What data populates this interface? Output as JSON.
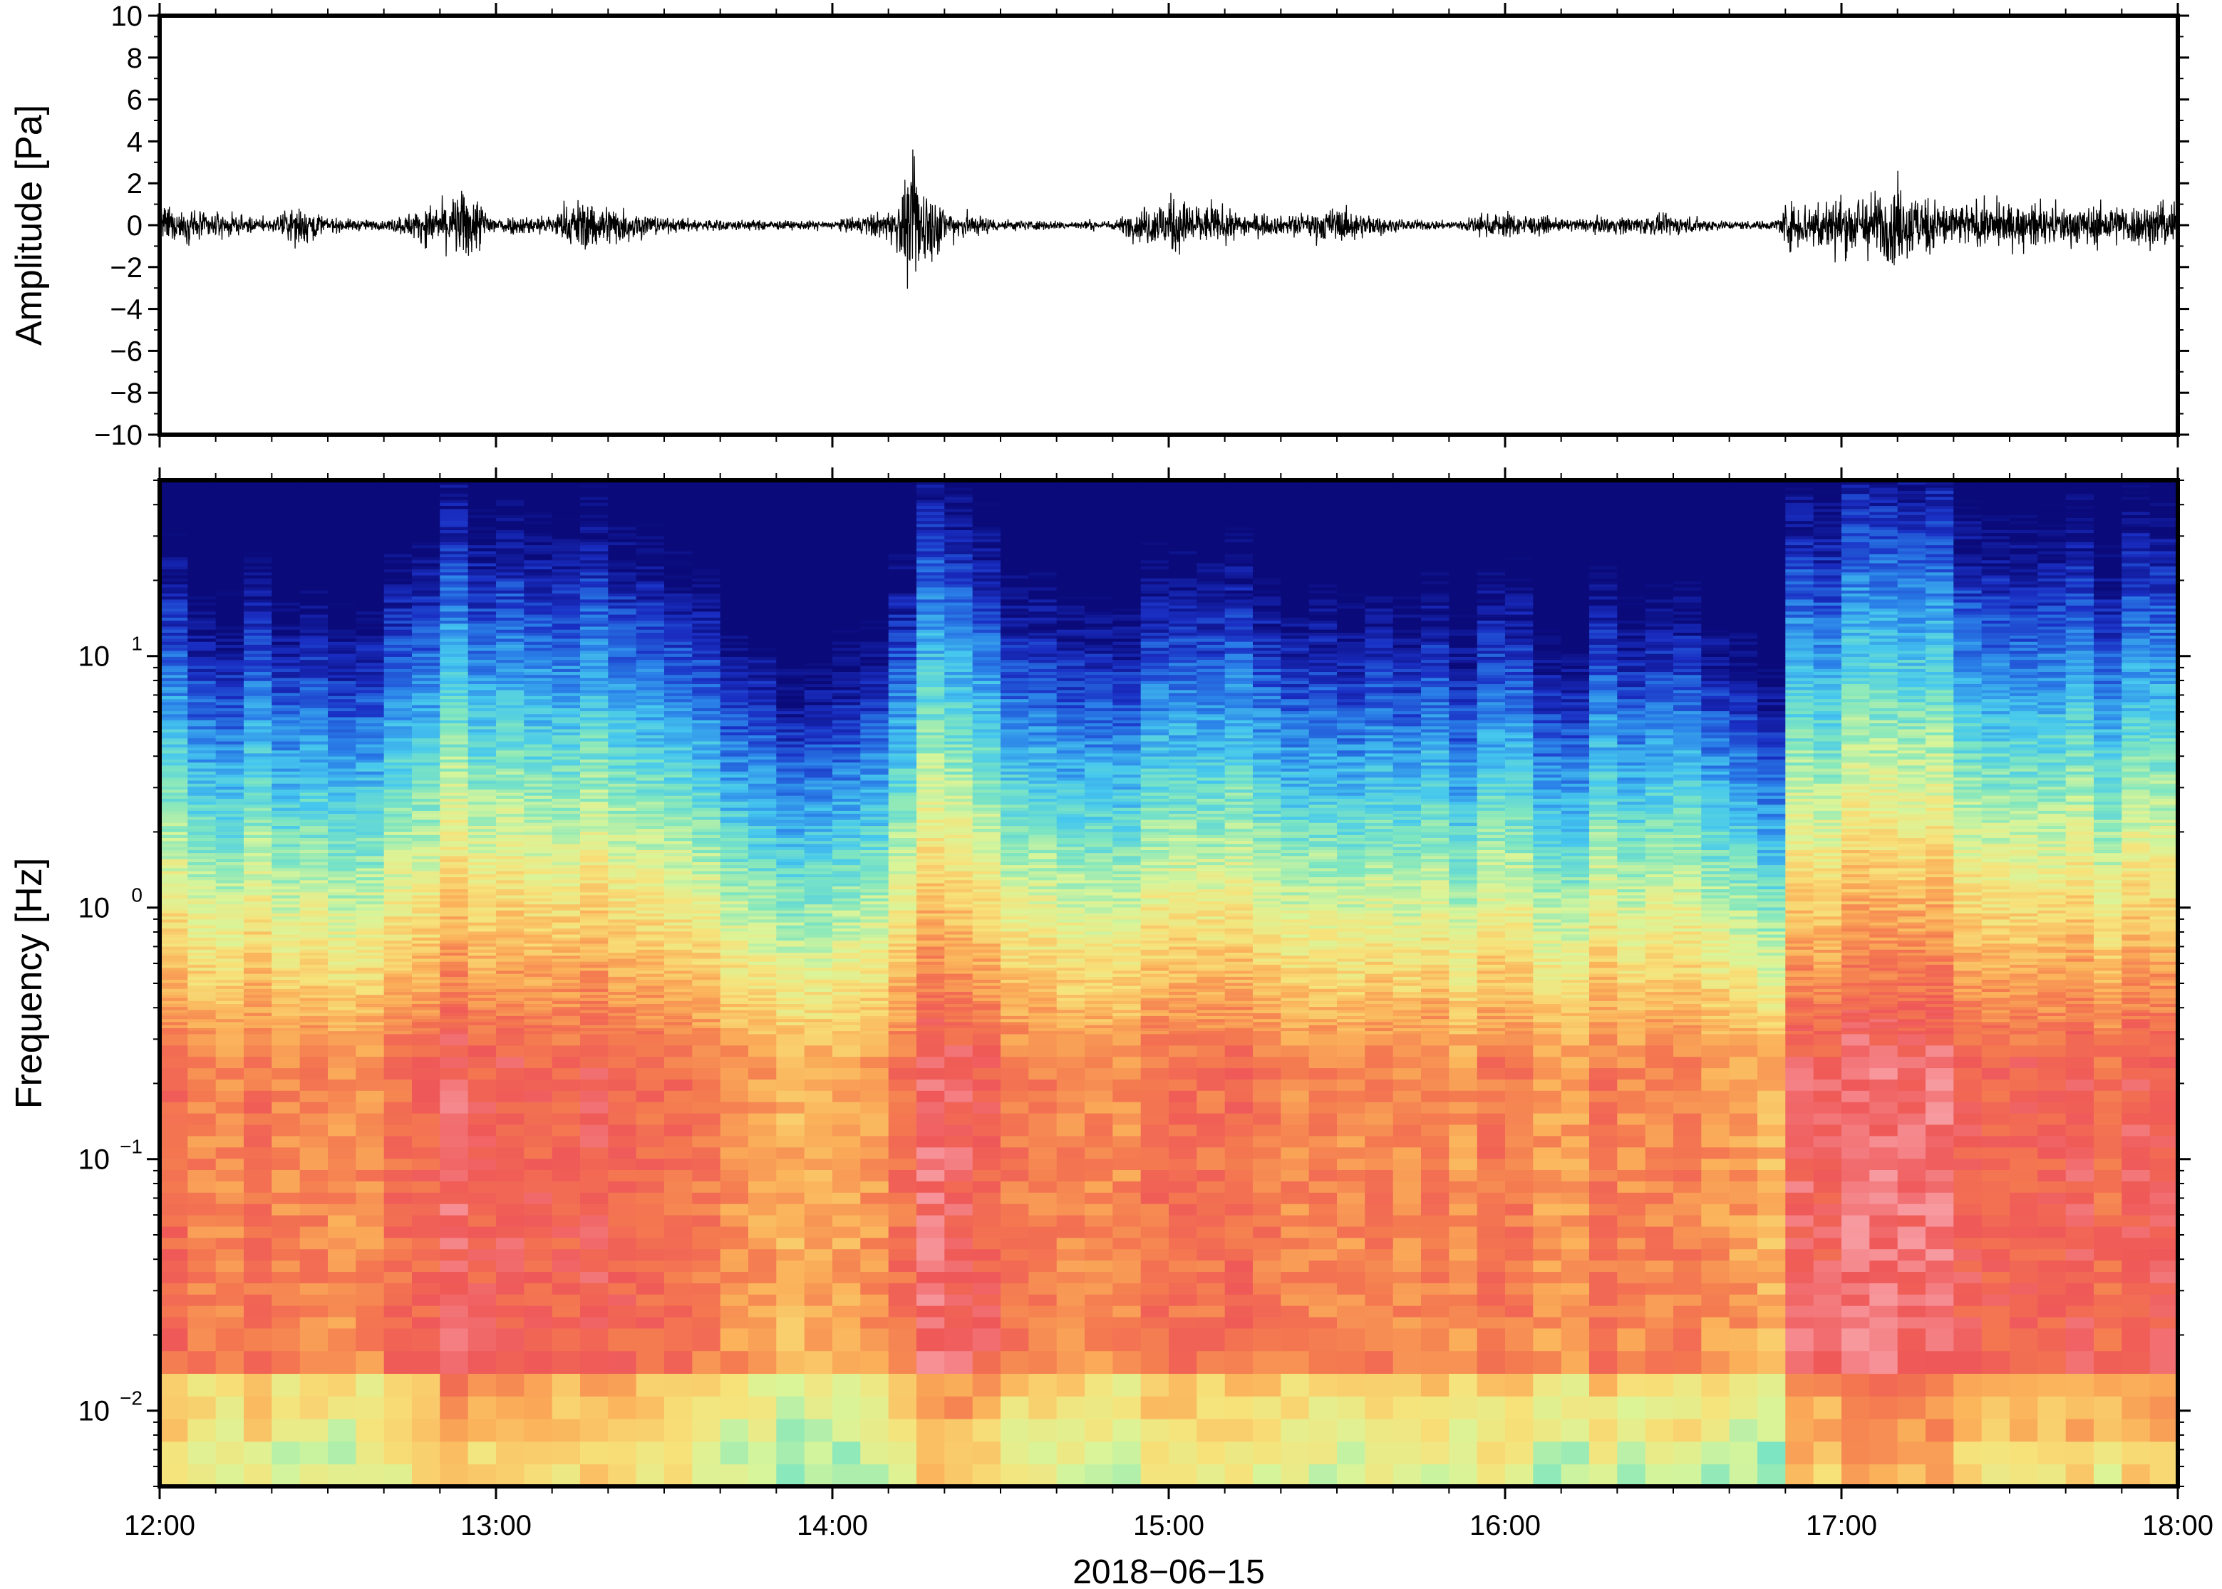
{
  "chart_data": [
    {
      "type": "line",
      "title": "",
      "ylabel": "Amplitude [Pa]",
      "ylim": [
        -10,
        10
      ],
      "yticks": [
        -10,
        -8,
        -6,
        -4,
        -2,
        0,
        2,
        4,
        6,
        8,
        10
      ],
      "ytick_labels": [
        "−10",
        "−8",
        "−6",
        "−4",
        "−2",
        "0",
        "2",
        "4",
        "6",
        "8",
        "10"
      ],
      "xlim": [
        "2018-06-15 12:00",
        "2018-06-15 18:00"
      ],
      "series": [
        {
          "values_description_note": "",
          "envelope": {
            "time": [
              "12:00",
              "12:10",
              "12:20",
              "12:25",
              "12:30",
              "12:40",
              "12:50",
              "12:55",
              "13:00",
              "13:10",
              "13:15",
              "13:20",
              "13:30",
              "13:40",
              "13:50",
              "14:00",
              "14:10",
              "14:15",
              "14:20",
              "14:30",
              "14:40",
              "14:50",
              "15:00",
              "15:10",
              "15:20",
              "15:30",
              "15:40",
              "15:50",
              "16:00",
              "16:10",
              "16:20",
              "16:30",
              "16:40",
              "16:48",
              "16:50",
              "17:00",
              "17:10",
              "17:20",
              "17:30",
              "17:40",
              "17:50",
              "18:00"
            ],
            "peak_pa": [
              1.3,
              0.8,
              0.4,
              1.5,
              0.5,
              0.3,
              1.5,
              2.5,
              0.6,
              0.7,
              1.8,
              1.5,
              0.5,
              0.4,
              0.3,
              0.3,
              1.0,
              4.0,
              1.2,
              0.4,
              0.3,
              0.3,
              2.0,
              1.0,
              0.6,
              1.2,
              0.4,
              0.3,
              0.9,
              0.4,
              0.6,
              0.7,
              0.3,
              0.3,
              1.5,
              2.0,
              2.6,
              1.5,
              1.4,
              1.3,
              1.4,
              1.6
            ]
          }
        }
      ]
    },
    {
      "type": "heatmap",
      "title": "",
      "xlabel": "2018−06−15",
      "ylabel": "Frequency [Hz]",
      "y_scale": "log",
      "ylim": [
        0.005,
        50
      ],
      "xlim": [
        "12:00",
        "18:00"
      ],
      "xticks": [
        "12:00",
        "13:00",
        "14:00",
        "15:00",
        "16:00",
        "17:00",
        "18:00"
      ],
      "ytick_labels": [
        {
          "value": 0.01,
          "base": "10",
          "exp": "−2"
        },
        {
          "value": 0.1,
          "base": "10",
          "exp": "−1"
        },
        {
          "value": 1,
          "base": "10",
          "exp": "0"
        },
        {
          "value": 10,
          "base": "10",
          "exp": "1"
        }
      ],
      "colormap": [
        "#0a0a7a",
        "#1a2fc4",
        "#2a7fe8",
        "#46c8ee",
        "#7fe6c0",
        "#d8f59a",
        "#f7e27a",
        "#fbb25a",
        "#f47a50",
        "#ef5858",
        "#f79aa0"
      ],
      "activity": {
        "time": [
          "12:00",
          "12:10",
          "12:20",
          "12:30",
          "12:40",
          "12:50",
          "13:00",
          "13:10",
          "13:20",
          "13:30",
          "13:40",
          "13:50",
          "14:00",
          "14:10",
          "14:20",
          "14:30",
          "14:40",
          "14:50",
          "15:00",
          "15:10",
          "15:20",
          "15:30",
          "15:40",
          "15:50",
          "16:00",
          "16:10",
          "16:20",
          "16:30",
          "16:40",
          "16:48",
          "16:50",
          "17:00",
          "17:10",
          "17:20",
          "17:30",
          "17:40",
          "17:50",
          "18:00"
        ],
        "level": [
          0.6,
          0.5,
          0.6,
          0.4,
          0.5,
          0.8,
          0.7,
          0.6,
          0.8,
          0.7,
          0.5,
          0.3,
          0.3,
          0.5,
          0.9,
          0.6,
          0.4,
          0.3,
          0.6,
          0.7,
          0.5,
          0.5,
          0.4,
          0.4,
          0.5,
          0.4,
          0.5,
          0.4,
          0.3,
          0.3,
          0.8,
          0.9,
          0.95,
          0.8,
          0.8,
          0.75,
          0.7,
          0.75
        ]
      }
    }
  ]
}
